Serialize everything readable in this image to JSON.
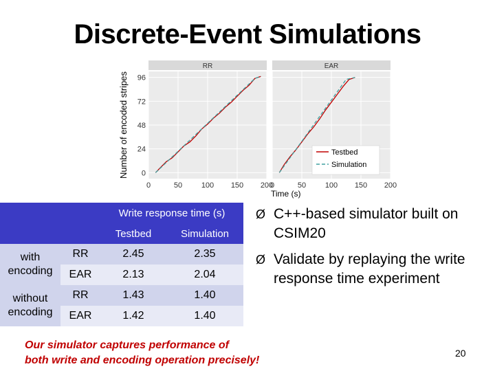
{
  "slide": {
    "title": "Discrete-Event Simulations",
    "page_number": "20"
  },
  "table": {
    "header_main": "Write response time (s)",
    "col_testbed": "Testbed",
    "col_simulation": "Simulation",
    "groups": [
      {
        "label_line1": "with",
        "label_line2": "encoding",
        "rows": [
          {
            "scheme": "RR",
            "testbed": "2.45",
            "simulation": "2.35"
          },
          {
            "scheme": "EAR",
            "testbed": "2.13",
            "simulation": "2.04"
          }
        ]
      },
      {
        "label_line1": "without",
        "label_line2": "encoding",
        "rows": [
          {
            "scheme": "RR",
            "testbed": "1.43",
            "simulation": "1.40"
          },
          {
            "scheme": "EAR",
            "testbed": "1.42",
            "simulation": "1.40"
          }
        ]
      }
    ]
  },
  "bullets": [
    "C++-based simulator built on CSIM20",
    "Validate by replaying the write response time experiment"
  ],
  "bullet_glyph": "Ø",
  "conclusion": {
    "line1": "Our simulator captures performance of",
    "line2": "both write and encoding operation precisely!"
  },
  "chart_data": {
    "type": "line",
    "ylabel": "Number of encoded stripes",
    "xlabel": "Time (s)",
    "x_ticks": [
      "0",
      "50",
      "100",
      "150",
      "200"
    ],
    "y_ticks": [
      "0",
      "24",
      "48",
      "72",
      "96"
    ],
    "xlim": [
      0,
      200
    ],
    "ylim": [
      -6,
      102
    ],
    "grid": true,
    "panels": [
      {
        "title": "RR",
        "series": [
          {
            "name": "Testbed",
            "color": "#c00000",
            "x": [
              12,
              20,
              30,
              40,
              50,
              60,
              70,
              80,
              90,
              100,
              110,
              120,
              130,
              140,
              150,
              160,
              170,
              180,
              190
            ],
            "y": [
              0,
              5,
              11,
              15,
              21,
              27,
              31,
              37,
              44,
              49,
              55,
              60,
              66,
              71,
              77,
              83,
              88,
              95,
              97
            ]
          },
          {
            "name": "Simulation",
            "color": "#40a0a0",
            "x": [
              12,
              180,
              190
            ],
            "y": [
              0,
              95,
              97
            ]
          }
        ]
      },
      {
        "title": "EAR",
        "series": [
          {
            "name": "Testbed",
            "color": "#c00000",
            "x": [
              12,
              20,
              30,
              40,
              50,
              60,
              70,
              80,
              90,
              100,
              110,
              120,
              130,
              140
            ],
            "y": [
              0,
              8,
              16,
              23,
              31,
              39,
              46,
              54,
              63,
              71,
              79,
              87,
              94,
              96
            ]
          },
          {
            "name": "Simulation",
            "color": "#40a0a0",
            "x": [
              12,
              125,
              140
            ],
            "y": [
              0,
              94,
              96
            ]
          }
        ]
      }
    ],
    "legend": {
      "position": "bottom-right of EAR panel",
      "entries": [
        "Testbed",
        "Simulation"
      ]
    }
  },
  "colors": {
    "table_header": "#3b3bc4",
    "row_dark": "#d0d4ec",
    "row_light": "#e8eaf6",
    "note": "#c00000",
    "testbed_line": "#c00000",
    "simulation_line": "#40a0a0"
  }
}
